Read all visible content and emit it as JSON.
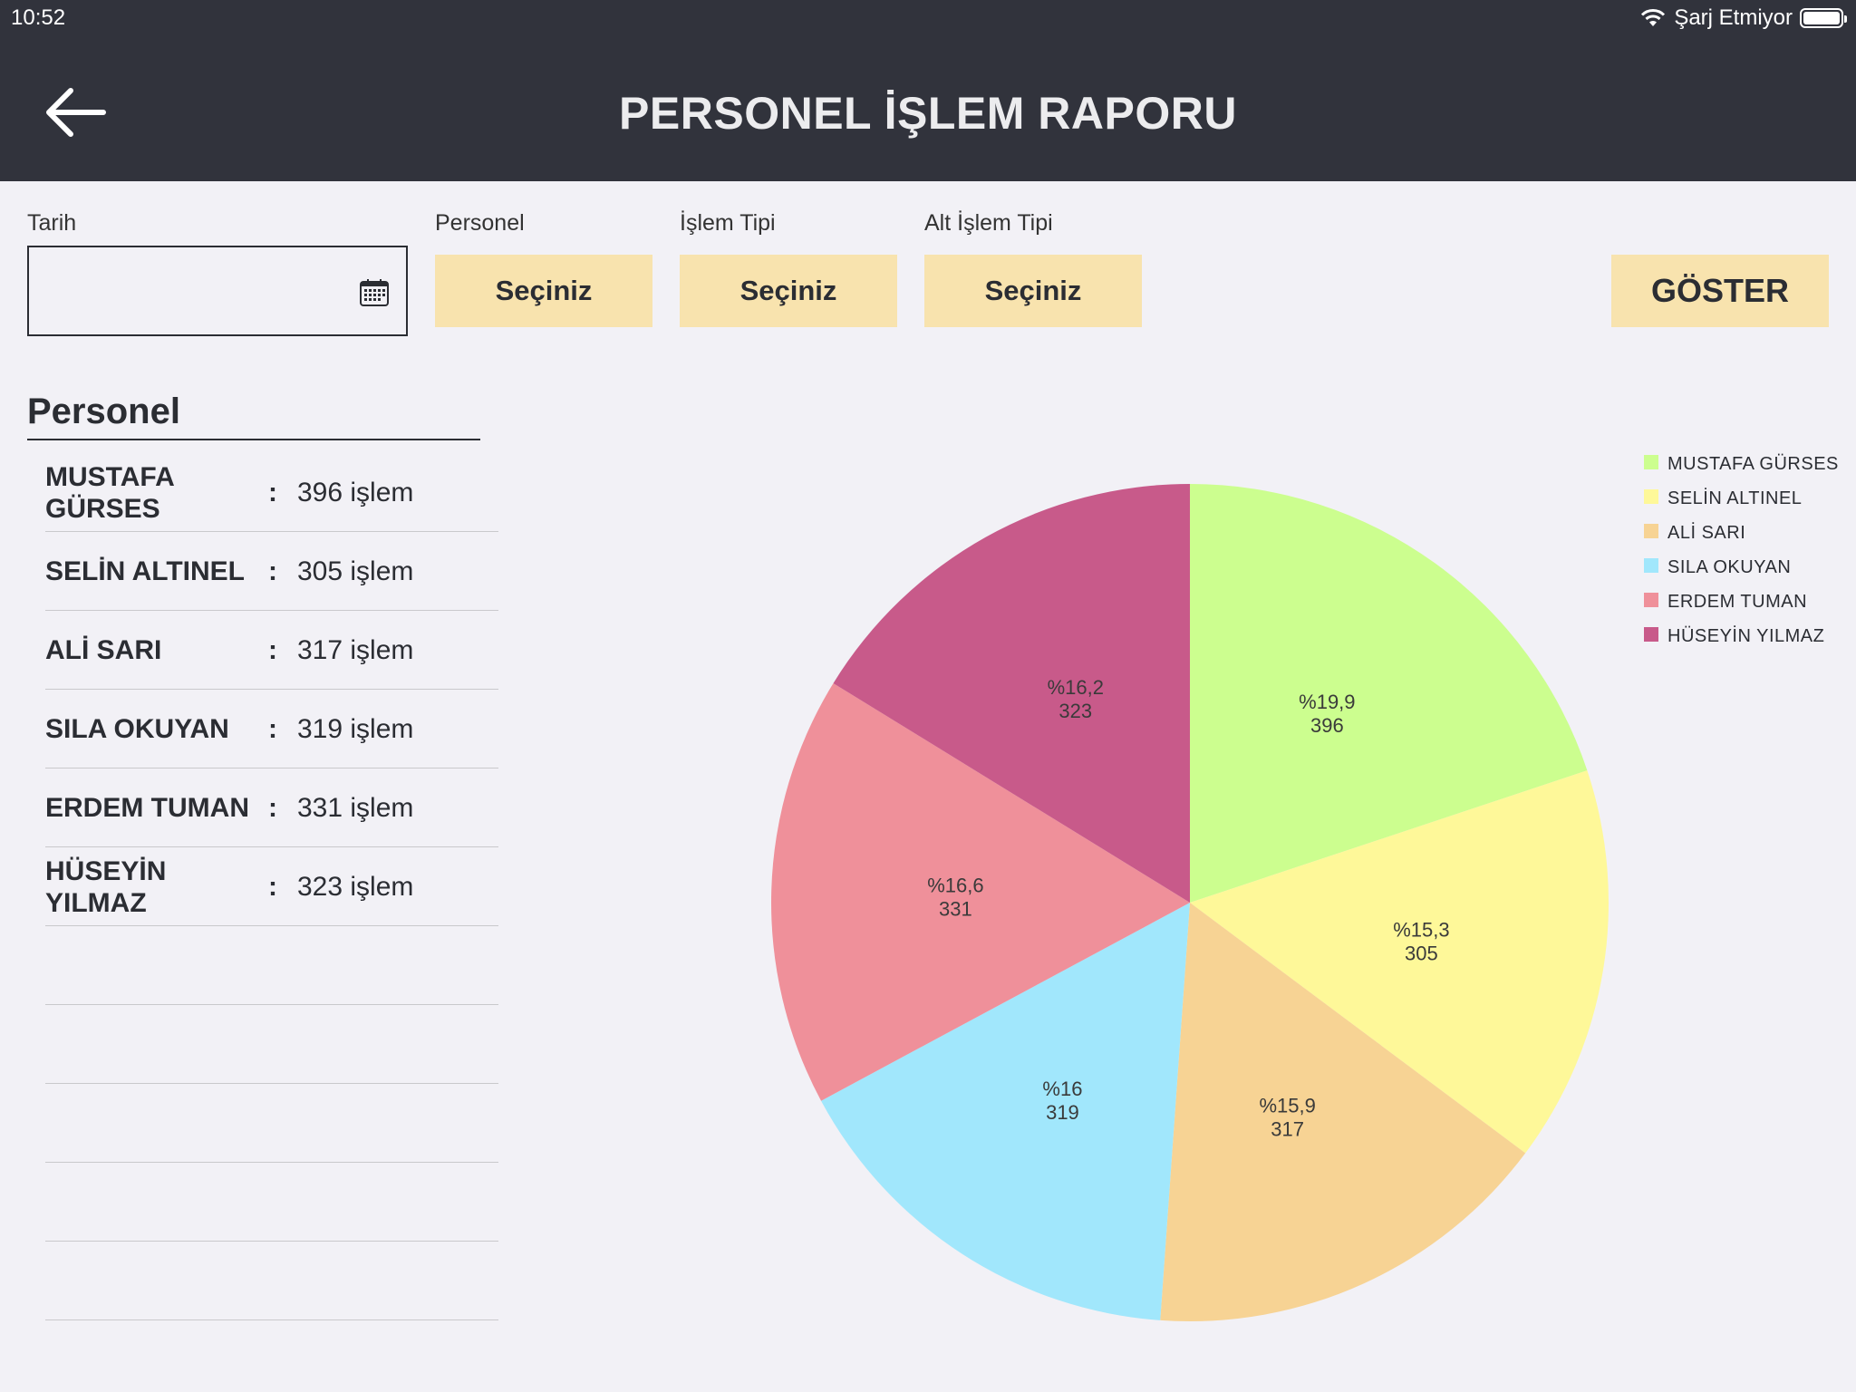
{
  "status": {
    "time": "10:52",
    "charging": "Şarj Etmiyor"
  },
  "header": {
    "title": "PERSONEL İŞLEM RAPORU"
  },
  "filters": {
    "date_label": "Tarih",
    "date_value": "",
    "personnel_label": "Personel",
    "personnel_value": "Seçiniz",
    "type_label": "İşlem Tipi",
    "type_value": "Seçiniz",
    "subtype_label": "Alt İşlem Tipi",
    "subtype_value": "Seçiniz",
    "show_label": "GÖSTER"
  },
  "list": {
    "title": "Personel",
    "separator": ":",
    "rows": [
      {
        "name": "MUSTAFA GÜRSES",
        "count": "396 işlem"
      },
      {
        "name": "SELİN ALTINEL",
        "count": "305 işlem"
      },
      {
        "name": "ALİ SARI",
        "count": "317 işlem"
      },
      {
        "name": "SILA OKUYAN",
        "count": "319 işlem"
      },
      {
        "name": "ERDEM TUMAN",
        "count": "331 işlem"
      },
      {
        "name": "HÜSEYİN YILMAZ",
        "count": "323 işlem"
      }
    ],
    "empty_rows": 5
  },
  "chart_data": {
    "type": "pie",
    "slices": [
      {
        "name": "MUSTAFA GÜRSES",
        "value": 396,
        "percent_label": "%19,9",
        "color": "#ccfe8f"
      },
      {
        "name": "SELİN ALTINEL",
        "value": 305,
        "percent_label": "%15,3",
        "color": "#fef899"
      },
      {
        "name": "ALİ SARI",
        "value": 317,
        "percent_label": "%15,9",
        "color": "#f7d394"
      },
      {
        "name": "SILA OKUYAN",
        "value": 319,
        "percent_label": "%16",
        "color": "#a1e7fc"
      },
      {
        "name": "ERDEM TUMAN",
        "value": 331,
        "percent_label": "%16,6",
        "color": "#ef909a"
      },
      {
        "name": "HÜSEYİN YILMAZ",
        "value": 323,
        "percent_label": "%16,2",
        "color": "#c85a8a"
      }
    ],
    "legend": {
      "position": "top-right",
      "entries": [
        "MUSTAFA GÜRSES",
        "SELİN ALTINEL",
        "ALİ SARI",
        "SILA OKUYAN",
        "ERDEM TUMAN",
        "HÜSEYİN YILMAZ"
      ]
    }
  }
}
